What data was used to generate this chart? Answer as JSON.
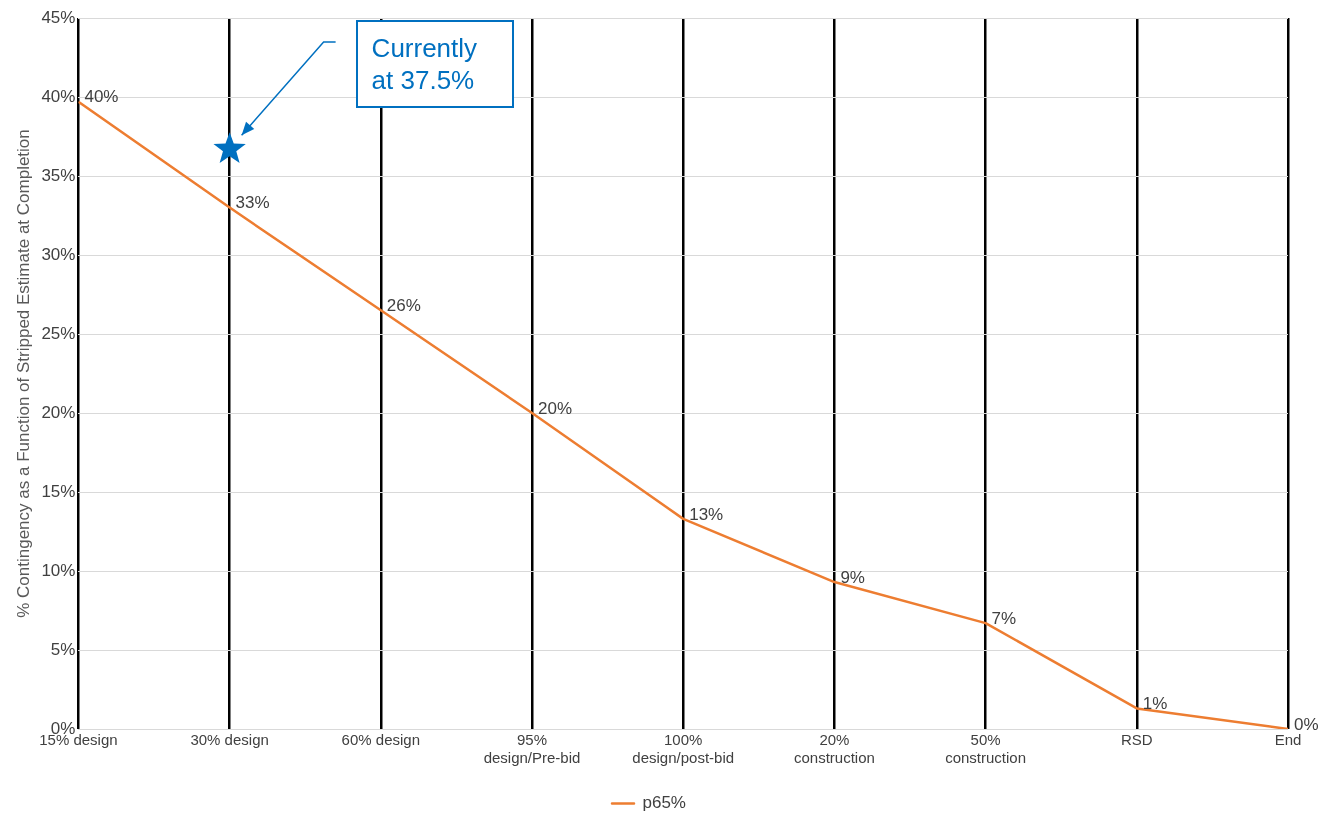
{
  "chart_data": {
    "type": "line",
    "ylabel": "% Contingency as a Function of Stripped Estimate at Completion",
    "categories": [
      "15% design",
      "30% design",
      "60% design",
      "95%\ndesign/Pre-bid",
      "100%\ndesign/post-bid",
      "20%\nconstruction",
      "50%\nconstruction",
      "RSD",
      "End"
    ],
    "series": [
      {
        "name": "p65%",
        "color": "#ed7d31",
        "values": [
          39.7,
          33,
          26.5,
          20,
          13.3,
          9.3,
          6.7,
          1.3,
          0
        ],
        "value_labels": [
          "40%",
          "33%",
          "26%",
          "20%",
          "13%",
          "9%",
          "7%",
          "1%",
          "0%"
        ]
      },
      {
        "type": "scatter",
        "color": "#0070c0",
        "marker": "star",
        "x": [
          "30% design"
        ],
        "values": [
          36.7
        ]
      }
    ],
    "ylim": [
      0,
      45
    ],
    "yticks": [
      {
        "value": 0,
        "label": "0%"
      },
      {
        "value": 5,
        "label": "5%"
      },
      {
        "value": 10,
        "label": "10%"
      },
      {
        "value": 15,
        "label": "15%"
      },
      {
        "value": 20,
        "label": "20%"
      },
      {
        "value": 25,
        "label": "25%"
      },
      {
        "value": 30,
        "label": "30%"
      },
      {
        "value": 35,
        "label": "35%"
      },
      {
        "value": 40,
        "label": "40%"
      },
      {
        "value": 45,
        "label": "45%"
      }
    ],
    "grid": true,
    "legend": "bottom",
    "marker": "none",
    "line_style": "solid",
    "annotations": [
      "Currently at 37.5%"
    ]
  }
}
